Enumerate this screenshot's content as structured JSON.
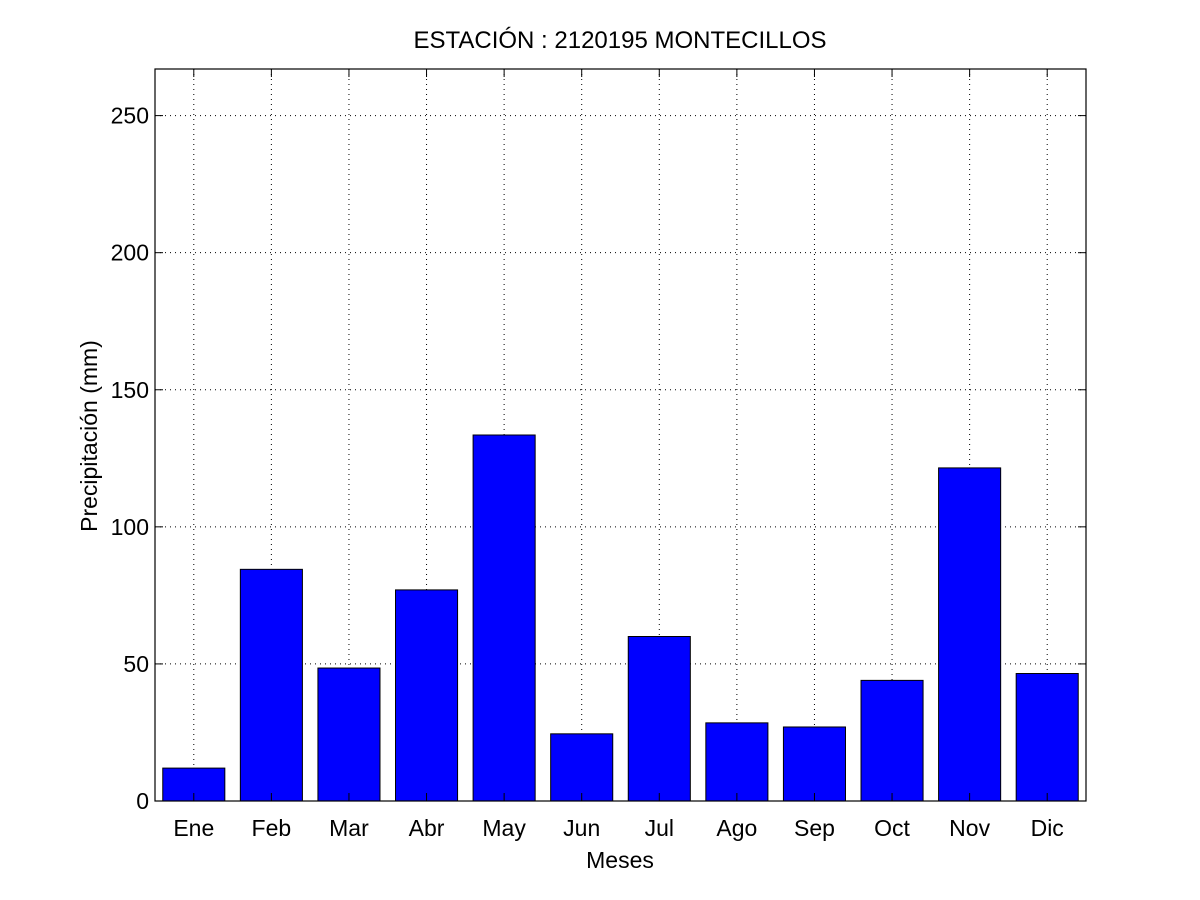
{
  "chart_data": {
    "type": "bar",
    "title": "ESTACIÓN :  2120195  MONTECILLOS",
    "xlabel": "Meses",
    "ylabel": "Precipitación (mm)",
    "categories": [
      "Ene",
      "Feb",
      "Mar",
      "Abr",
      "May",
      "Jun",
      "Jul",
      "Ago",
      "Sep",
      "Oct",
      "Nov",
      "Dic"
    ],
    "values": [
      12,
      84.5,
      48.5,
      77,
      133.5,
      24.5,
      60,
      28.5,
      27,
      44,
      121.5,
      46.5
    ],
    "ylim": [
      0,
      267
    ],
    "yticks": [
      0,
      50,
      100,
      150,
      200,
      250
    ],
    "grid": true,
    "colors": {
      "bar": "#0000ff",
      "edge": "#000000",
      "background": "#ffffff"
    }
  }
}
